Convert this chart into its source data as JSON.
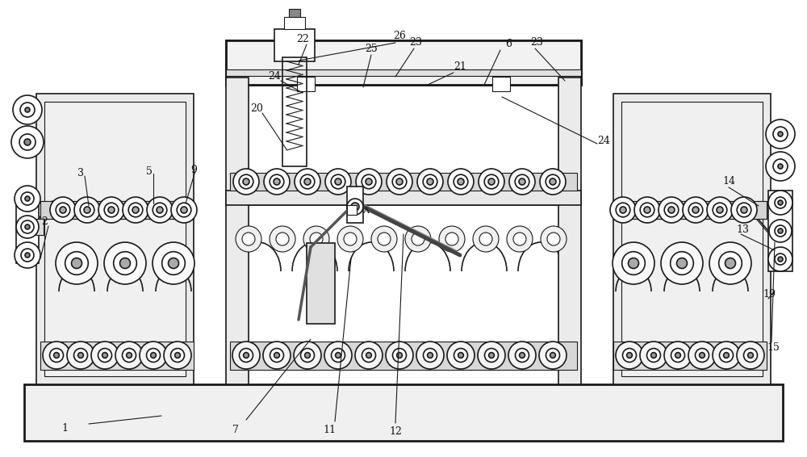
{
  "bg_color": "#ffffff",
  "line_color": "#1a1a1a",
  "figsize": [
    10.0,
    5.66
  ],
  "dpi": 100
}
